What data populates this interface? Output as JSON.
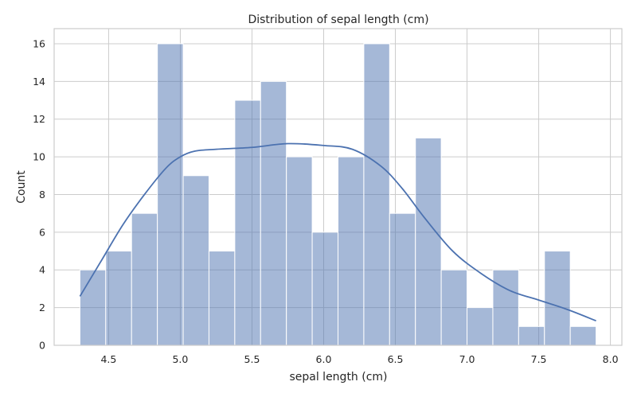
{
  "chart_data": {
    "type": "bar",
    "title": "Distribution of sepal length (cm)",
    "xlabel": "sepal length (cm)",
    "ylabel": "Count",
    "xlim": [
      4.12,
      8.08
    ],
    "ylim": [
      0,
      16.8
    ],
    "xticks": [
      4.5,
      5.0,
      5.5,
      6.0,
      6.5,
      7.0,
      7.5,
      8.0
    ],
    "yticks": [
      0,
      2,
      4,
      6,
      8,
      10,
      12,
      14,
      16
    ],
    "grid": true,
    "bins": [
      {
        "x0": 4.3,
        "x1": 4.48,
        "count": 4
      },
      {
        "x0": 4.48,
        "x1": 4.66,
        "count": 5
      },
      {
        "x0": 4.66,
        "x1": 4.84,
        "count": 7
      },
      {
        "x0": 4.84,
        "x1": 5.02,
        "count": 16
      },
      {
        "x0": 5.02,
        "x1": 5.2,
        "count": 9
      },
      {
        "x0": 5.2,
        "x1": 5.38,
        "count": 5
      },
      {
        "x0": 5.38,
        "x1": 5.56,
        "count": 13
      },
      {
        "x0": 5.56,
        "x1": 5.74,
        "count": 14
      },
      {
        "x0": 5.74,
        "x1": 5.92,
        "count": 10
      },
      {
        "x0": 5.92,
        "x1": 6.1,
        "count": 6
      },
      {
        "x0": 6.1,
        "x1": 6.28,
        "count": 10
      },
      {
        "x0": 6.28,
        "x1": 6.46,
        "count": 16
      },
      {
        "x0": 6.46,
        "x1": 6.64,
        "count": 7
      },
      {
        "x0": 6.64,
        "x1": 6.82,
        "count": 11
      },
      {
        "x0": 6.82,
        "x1": 7.0,
        "count": 4
      },
      {
        "x0": 7.0,
        "x1": 7.18,
        "count": 2
      },
      {
        "x0": 7.18,
        "x1": 7.36,
        "count": 4
      },
      {
        "x0": 7.36,
        "x1": 7.54,
        "count": 1
      },
      {
        "x0": 7.54,
        "x1": 7.72,
        "count": 5
      },
      {
        "x0": 7.72,
        "x1": 7.9,
        "count": 1
      }
    ],
    "kde": {
      "x": [
        4.3,
        4.45,
        4.6,
        4.75,
        4.9,
        5.0,
        5.1,
        5.25,
        5.5,
        5.75,
        6.0,
        6.2,
        6.4,
        6.55,
        6.7,
        6.9,
        7.1,
        7.3,
        7.5,
        7.7,
        7.9
      ],
      "y": [
        2.6,
        4.5,
        6.4,
        8.0,
        9.4,
        10.0,
        10.3,
        10.4,
        10.5,
        10.7,
        10.6,
        10.4,
        9.5,
        8.3,
        6.8,
        5.0,
        3.8,
        2.9,
        2.4,
        1.9,
        1.3
      ],
      "color": "#4c72b0"
    },
    "bar_color": "#4c72b0",
    "grid_color": "#cccccc"
  }
}
